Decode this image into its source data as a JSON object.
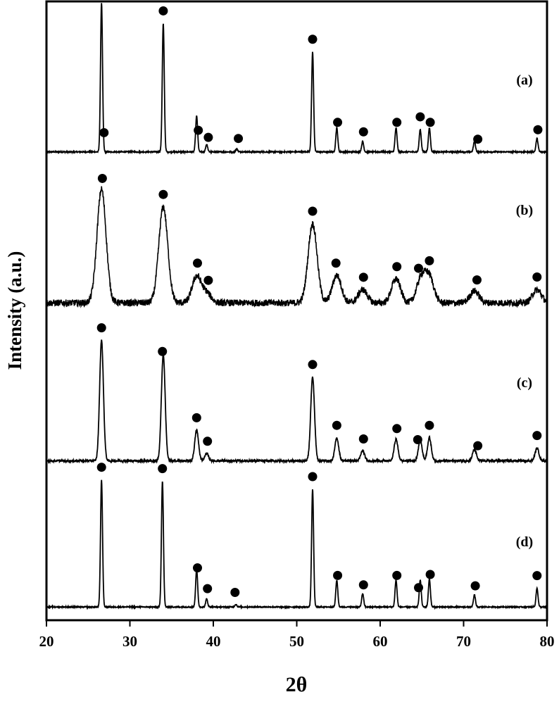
{
  "chart_data": {
    "type": "line",
    "title": "",
    "xlabel": "2θ",
    "ylabel": "Intensity (a.u.)",
    "xlim": [
      20,
      80
    ],
    "x_ticks": [
      20,
      30,
      40,
      50,
      60,
      70,
      80
    ],
    "grid": false,
    "legend": "none",
    "marker": "●",
    "series": [
      {
        "name": "(a)",
        "baseline": 0.02,
        "noise": 0.004,
        "width_scale": 1.0,
        "peaks": [
          [
            26.6,
            1.0
          ],
          [
            34.0,
            0.86
          ],
          [
            38.0,
            0.24
          ],
          [
            39.2,
            0.05
          ],
          [
            42.8,
            0.02
          ],
          [
            51.9,
            0.67
          ],
          [
            54.8,
            0.16
          ],
          [
            57.9,
            0.07
          ],
          [
            61.9,
            0.16
          ],
          [
            64.8,
            0.15
          ],
          [
            65.9,
            0.16
          ],
          [
            71.3,
            0.07
          ],
          [
            78.8,
            0.09
          ]
        ],
        "markers": [
          26.9,
          34.0,
          38.2,
          39.4,
          43.0,
          51.9,
          54.9,
          58.0,
          62.0,
          64.8,
          66.0,
          71.7,
          78.9
        ]
      },
      {
        "name": "(b)",
        "baseline": 0.04,
        "noise": 0.028,
        "width_scale": 4.5,
        "peaks": [
          [
            26.6,
            0.95
          ],
          [
            34.0,
            0.8
          ],
          [
            38.0,
            0.22
          ],
          [
            39.2,
            0.08
          ],
          [
            51.9,
            0.66
          ],
          [
            54.8,
            0.23
          ],
          [
            57.9,
            0.11
          ],
          [
            61.9,
            0.2
          ],
          [
            64.9,
            0.2
          ],
          [
            65.9,
            0.21
          ],
          [
            71.3,
            0.1
          ],
          [
            78.8,
            0.11
          ]
        ],
        "markers": [
          26.7,
          34.0,
          38.1,
          39.4,
          51.9,
          54.7,
          58.0,
          62.0,
          64.6,
          65.9,
          71.6,
          78.8
        ]
      },
      {
        "name": "(c)",
        "baseline": 0.03,
        "noise": 0.008,
        "width_scale": 1.9,
        "peaks": [
          [
            26.6,
            0.95
          ],
          [
            34.0,
            0.84
          ],
          [
            38.0,
            0.24
          ],
          [
            39.2,
            0.06
          ],
          [
            51.9,
            0.66
          ],
          [
            54.8,
            0.18
          ],
          [
            57.9,
            0.08
          ],
          [
            61.9,
            0.17
          ],
          [
            64.8,
            0.16
          ],
          [
            65.9,
            0.18
          ],
          [
            71.3,
            0.09
          ],
          [
            78.8,
            0.1
          ]
        ],
        "markers": [
          26.6,
          33.9,
          38.0,
          39.3,
          51.9,
          54.8,
          58.0,
          62.0,
          64.5,
          65.9,
          71.7,
          78.8
        ]
      },
      {
        "name": "(d)",
        "baseline": 0.02,
        "noise": 0.004,
        "width_scale": 1.0,
        "peaks": [
          [
            26.6,
            0.95
          ],
          [
            33.9,
            0.94
          ],
          [
            38.0,
            0.28
          ],
          [
            39.2,
            0.06
          ],
          [
            42.7,
            0.02
          ],
          [
            51.9,
            0.88
          ],
          [
            54.8,
            0.2
          ],
          [
            57.9,
            0.1
          ],
          [
            61.9,
            0.2
          ],
          [
            64.8,
            0.2
          ],
          [
            65.9,
            0.21
          ],
          [
            71.3,
            0.09
          ],
          [
            78.8,
            0.14
          ]
        ],
        "markers": [
          26.6,
          33.9,
          38.1,
          39.3,
          42.6,
          51.9,
          54.9,
          58.0,
          62.0,
          64.6,
          66.0,
          71.4,
          78.8
        ]
      }
    ]
  }
}
